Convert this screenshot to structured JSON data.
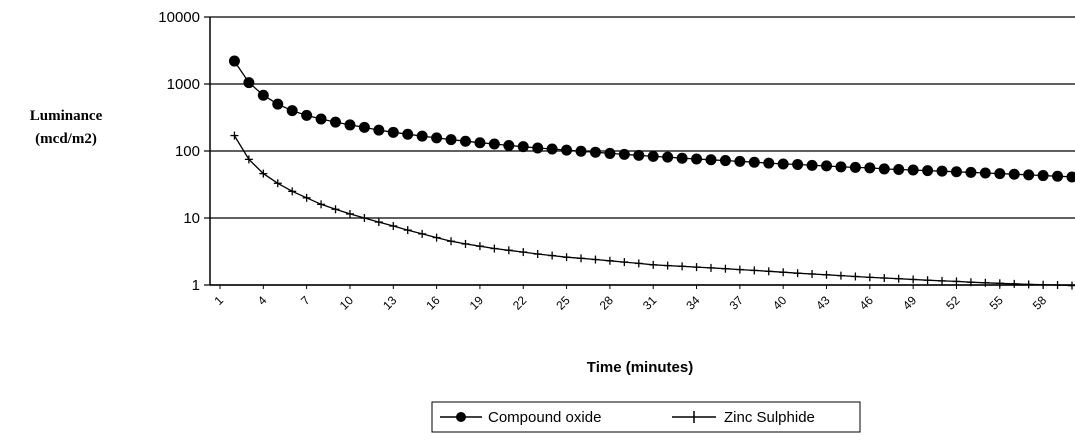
{
  "chart_data": {
    "type": "line",
    "title": "",
    "ylabel": [
      "Luminance",
      "(mcd/m2)"
    ],
    "xlabel": "Time (minutes)",
    "yscale": "log",
    "ylim": [
      1,
      10000
    ],
    "yticks": [
      "10000",
      "1000",
      "100",
      "10",
      "1"
    ],
    "xlim": [
      1,
      60
    ],
    "xticks": [
      "1",
      "4",
      "7",
      "10",
      "13",
      "16",
      "19",
      "22",
      "25",
      "28",
      "31",
      "34",
      "37",
      "40",
      "43",
      "46",
      "49",
      "52",
      "55",
      "58"
    ],
    "grid": "horizontal",
    "legend_position": "bottom",
    "series": [
      {
        "name": "Compound oxide",
        "marker": "circle",
        "color": "#000000",
        "x": [
          2,
          3,
          4,
          5,
          6,
          7,
          8,
          9,
          10,
          11,
          12,
          13,
          14,
          15,
          16,
          17,
          18,
          19,
          20,
          21,
          22,
          23,
          24,
          25,
          26,
          27,
          28,
          29,
          30,
          31,
          32,
          33,
          34,
          35,
          36,
          37,
          38,
          39,
          40,
          41,
          42,
          43,
          44,
          45,
          46,
          47,
          48,
          49,
          50,
          51,
          52,
          53,
          54,
          55,
          56,
          57,
          58,
          59,
          60
        ],
        "values": [
          2200,
          1050,
          680,
          500,
          400,
          340,
          300,
          270,
          245,
          225,
          205,
          190,
          178,
          167,
          157,
          148,
          140,
          133,
          127,
          121,
          116,
          111,
          107,
          103,
          99,
          96,
          92,
          89,
          86,
          83,
          81,
          78,
          76,
          74,
          72,
          70,
          68,
          66,
          64,
          63,
          61,
          60,
          58,
          57,
          56,
          54,
          53,
          52,
          51,
          50,
          49,
          48,
          47,
          46,
          45,
          44,
          43,
          42,
          41
        ]
      },
      {
        "name": "Zinc Sulphide",
        "marker": "plus",
        "color": "#000000",
        "x": [
          2,
          3,
          4,
          5,
          6,
          7,
          8,
          9,
          10,
          11,
          12,
          13,
          14,
          15,
          16,
          17,
          18,
          19,
          20,
          21,
          22,
          23,
          24,
          25,
          26,
          27,
          28,
          29,
          30,
          31,
          32,
          33,
          34,
          35,
          36,
          37,
          38,
          39,
          40,
          41,
          42,
          43,
          44,
          45,
          46,
          47,
          48,
          49,
          50,
          51,
          52,
          53,
          54,
          55,
          56,
          57,
          58,
          59,
          60
        ],
        "values": [
          170,
          75,
          46,
          33,
          25,
          20,
          16,
          13.5,
          11.5,
          10,
          8.7,
          7.6,
          6.6,
          5.8,
          5.1,
          4.5,
          4.1,
          3.8,
          3.5,
          3.3,
          3.1,
          2.9,
          2.75,
          2.6,
          2.5,
          2.4,
          2.3,
          2.2,
          2.1,
          2.0,
          1.95,
          1.9,
          1.85,
          1.8,
          1.75,
          1.7,
          1.65,
          1.6,
          1.55,
          1.5,
          1.46,
          1.42,
          1.38,
          1.34,
          1.3,
          1.27,
          1.24,
          1.21,
          1.18,
          1.15,
          1.13,
          1.1,
          1.08,
          1.06,
          1.04,
          1.02,
          1.01,
          1.0,
          0.98
        ]
      }
    ]
  }
}
